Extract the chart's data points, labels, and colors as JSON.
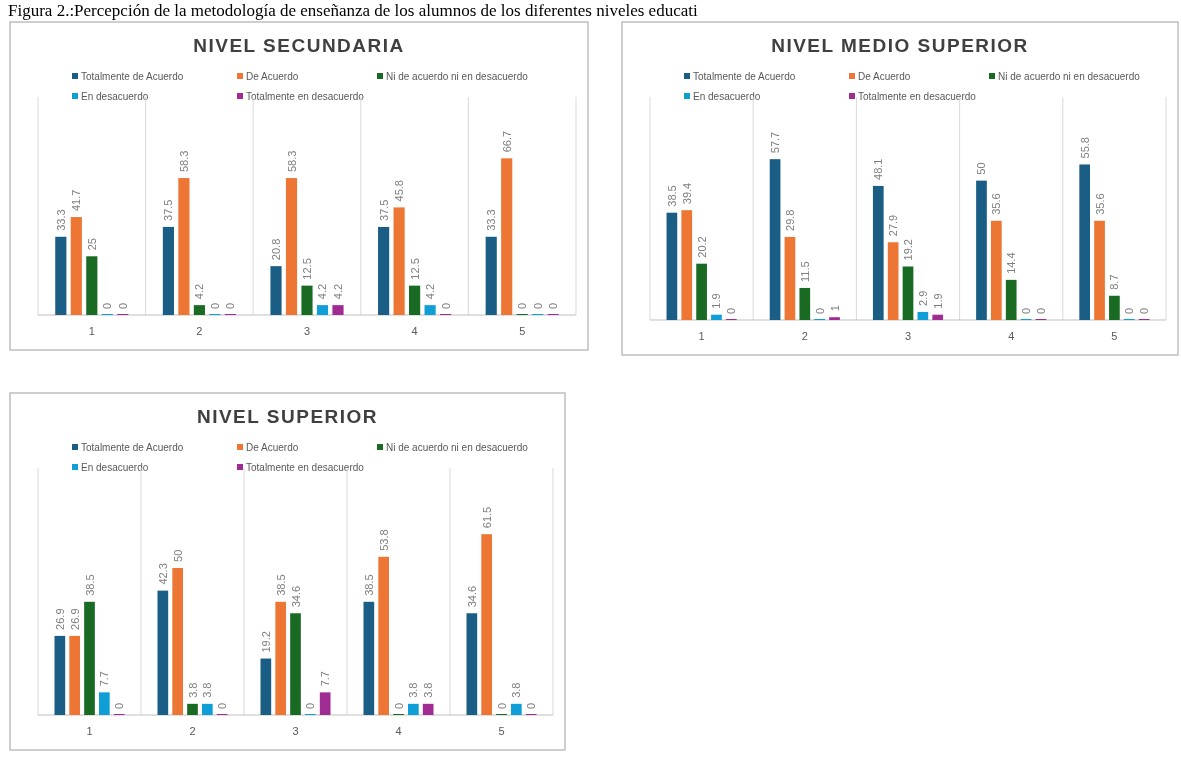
{
  "chart_data": [
    {
      "type": "bar",
      "title": "NIVEL SECUNDARIA",
      "annotations": [
        "Figura 2.:Percepción de la metodología de enseñanza de los alumnos de los diferentes niveles educati"
      ],
      "categories": [
        "1",
        "2",
        "3",
        "4",
        "5"
      ],
      "legend": "top",
      "grid": "x",
      "data_labels": true,
      "series": [
        {
          "name": "Totalmente de Acuerdo",
          "color": "#1b5e85",
          "values": [
            33.3,
            37.5,
            20.8,
            37.5,
            33.3
          ]
        },
        {
          "name": "De Acuerdo",
          "color": "#ee7634",
          "values": [
            41.7,
            58.3,
            58.3,
            45.8,
            66.7
          ]
        },
        {
          "name": "Ni de acuerdo ni en desacuerdo",
          "color": "#196b24",
          "values": [
            25,
            4.2,
            12.5,
            12.5,
            0
          ]
        },
        {
          "name": "En desacuerdo",
          "color": "#0f9ed5",
          "values": [
            0,
            0,
            4.2,
            4.2,
            0
          ]
        },
        {
          "name": "Totalmente en desacuerdo",
          "color": "#a02b93",
          "values": [
            0,
            0,
            4.2,
            0,
            0
          ]
        }
      ]
    },
    {
      "type": "bar",
      "title": "NIVEL MEDIO SUPERIOR",
      "categories": [
        "1",
        "2",
        "3",
        "4",
        "5"
      ],
      "legend": "top",
      "grid": "x",
      "data_labels": true,
      "series": [
        {
          "name": "Totalmente de Acuerdo",
          "color": "#1b5e85",
          "values": [
            38.5,
            57.7,
            48.1,
            50,
            55.8
          ]
        },
        {
          "name": "De Acuerdo",
          "color": "#ee7634",
          "values": [
            39.4,
            29.8,
            27.9,
            35.6,
            35.6
          ]
        },
        {
          "name": "Ni de acuerdo ni en desacuerdo",
          "color": "#196b24",
          "values": [
            20.2,
            11.5,
            19.2,
            14.4,
            8.7
          ]
        },
        {
          "name": "En desacuerdo",
          "color": "#0f9ed5",
          "values": [
            1.9,
            0,
            2.9,
            0,
            0
          ]
        },
        {
          "name": "Totalmente en desacuerdo",
          "color": "#a02b93",
          "values": [
            0,
            1,
            1.9,
            0,
            0
          ]
        }
      ]
    },
    {
      "type": "bar",
      "title": "NIVEL SUPERIOR",
      "categories": [
        "1",
        "2",
        "3",
        "4",
        "5"
      ],
      "legend": "top",
      "grid": "x",
      "data_labels": true,
      "series": [
        {
          "name": "Totalmente de Acuerdo",
          "color": "#1b5e85",
          "values": [
            26.9,
            42.3,
            19.2,
            38.5,
            34.6
          ]
        },
        {
          "name": "De Acuerdo",
          "color": "#ee7634",
          "values": [
            26.9,
            50,
            38.5,
            53.8,
            61.5
          ]
        },
        {
          "name": "Ni de acuerdo ni en desacuerdo",
          "color": "#196b24",
          "values": [
            38.5,
            3.8,
            34.6,
            0,
            0
          ]
        },
        {
          "name": "En desacuerdo",
          "color": "#0f9ed5",
          "values": [
            7.7,
            3.8,
            0,
            3.8,
            3.8
          ]
        },
        {
          "name": "Totalmente en desacuerdo",
          "color": "#a02b93",
          "values": [
            0,
            0,
            7.7,
            3.8,
            0
          ]
        }
      ]
    }
  ]
}
